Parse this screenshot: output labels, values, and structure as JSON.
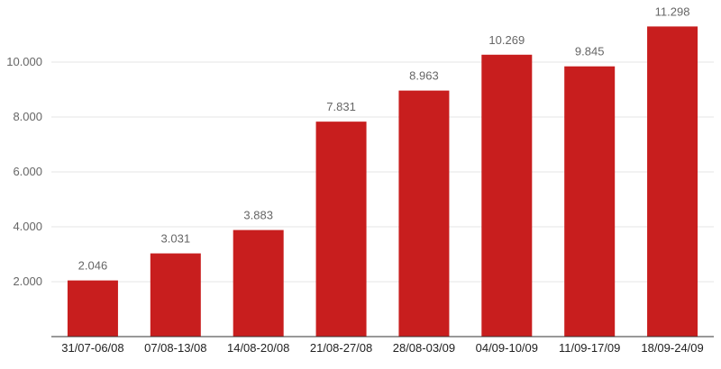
{
  "chart_data": {
    "type": "bar",
    "title": "",
    "xlabel": "",
    "ylabel": "",
    "categories": [
      "31/07-06/08",
      "07/08-13/08",
      "14/08-20/08",
      "21/08-27/08",
      "28/08-03/09",
      "04/09-10/09",
      "11/09-17/09",
      "18/09-24/09"
    ],
    "values": [
      2046,
      3031,
      3883,
      7831,
      8963,
      10269,
      9845,
      11298
    ],
    "value_labels": [
      "2.046",
      "3.031",
      "3.883",
      "7.831",
      "8.963",
      "10.269",
      "9.845",
      "11.298"
    ],
    "yticks": [
      2000,
      4000,
      6000,
      8000,
      10000
    ],
    "ytick_labels": [
      "2.000",
      "4.000",
      "6.000",
      "8.000",
      "10.000"
    ],
    "ylim": [
      0,
      12000
    ],
    "grid": true,
    "legend": "none",
    "bar_color": "#c81e1e"
  }
}
